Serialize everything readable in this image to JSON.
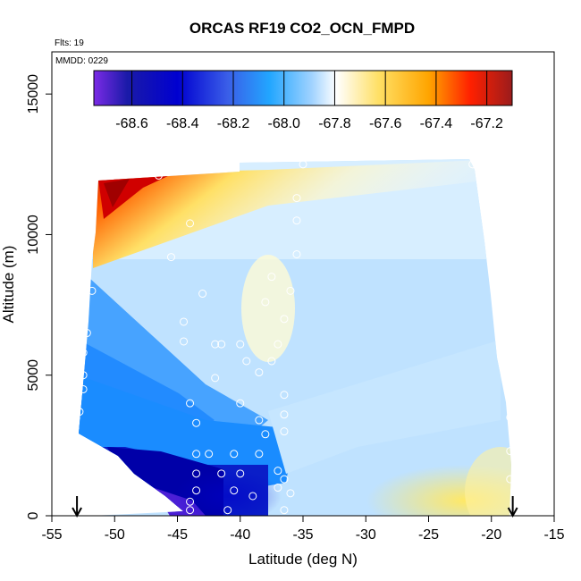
{
  "chart_data": {
    "type": "heatmap",
    "title": "ORCAS RF19 CO2_OCN_FMPD",
    "annotations": {
      "flights": "Flts: 19",
      "date": "MMDD: 0229"
    },
    "xlabel": "Latitude (deg N)",
    "ylabel": "Altitude (m)",
    "xlim": [
      -55,
      -15
    ],
    "ylim": [
      0,
      16500
    ],
    "x_ticks": [
      -55,
      -50,
      -45,
      -40,
      -35,
      -30,
      -25,
      -20,
      -15
    ],
    "y_ticks": [
      0,
      5000,
      10000,
      15000
    ],
    "colorbar": {
      "range": [
        -68.75,
        -67.1
      ],
      "ticks": [
        -68.6,
        -68.4,
        -68.2,
        -68.0,
        -67.8,
        -67.6,
        -67.4,
        -67.2
      ],
      "stops": [
        "#7b2be6",
        "#1a1aa8",
        "#0000d0",
        "#3a5ee8",
        "#22a6ff",
        "#9fd2ff",
        "#ffffff",
        "#ffe066",
        "#ffa500",
        "#ff2000",
        "#9b1c1c"
      ]
    },
    "arrow_markers_lat": [
      -53,
      -18.3
    ],
    "samples": [
      {
        "x": -48.5,
        "y": 12400
      },
      {
        "x": -47.8,
        "y": 12400
      },
      {
        "x": -47.0,
        "y": 12400
      },
      {
        "x": -46.5,
        "y": 12100
      },
      {
        "x": -44.0,
        "y": 10400
      },
      {
        "x": -46.2,
        "y": 12400
      },
      {
        "x": -45.5,
        "y": 9200
      },
      {
        "x": -43.0,
        "y": 7900
      },
      {
        "x": -44.5,
        "y": 6900
      },
      {
        "x": -44.5,
        "y": 6200
      },
      {
        "x": -42.0,
        "y": 6100
      },
      {
        "x": -41.5,
        "y": 6100
      },
      {
        "x": -40.0,
        "y": 6100
      },
      {
        "x": -39.5,
        "y": 5500
      },
      {
        "x": -38.5,
        "y": 5100
      },
      {
        "x": -37.5,
        "y": 5500
      },
      {
        "x": -37.5,
        "y": 8500
      },
      {
        "x": -38.0,
        "y": 7600
      },
      {
        "x": -36.5,
        "y": 7000
      },
      {
        "x": -36.0,
        "y": 8000
      },
      {
        "x": -37.0,
        "y": 6100
      },
      {
        "x": -35.5,
        "y": 9300
      },
      {
        "x": -35.5,
        "y": 10500
      },
      {
        "x": -35.5,
        "y": 11300
      },
      {
        "x": -35.0,
        "y": 12500
      },
      {
        "x": -34.0,
        "y": 12900
      },
      {
        "x": -32.0,
        "y": 12950
      },
      {
        "x": -30.0,
        "y": 12950
      },
      {
        "x": -28.0,
        "y": 12950
      },
      {
        "x": -26.0,
        "y": 12950
      },
      {
        "x": -24.0,
        "y": 12950
      },
      {
        "x": -22.5,
        "y": 12950
      },
      {
        "x": -21.5,
        "y": 12950
      },
      {
        "x": -21.5,
        "y": 12500
      },
      {
        "x": -44.0,
        "y": 4000
      },
      {
        "x": -43.5,
        "y": 3300
      },
      {
        "x": -42.0,
        "y": 4900
      },
      {
        "x": -40.0,
        "y": 4000
      },
      {
        "x": -38.5,
        "y": 3400
      },
      {
        "x": -38.0,
        "y": 2900
      },
      {
        "x": -36.5,
        "y": 3600
      },
      {
        "x": -36.5,
        "y": 3000
      },
      {
        "x": -36.5,
        "y": 4300
      },
      {
        "x": -43.5,
        "y": 2200
      },
      {
        "x": -42.5,
        "y": 2200
      },
      {
        "x": -40.5,
        "y": 2200
      },
      {
        "x": -38.5,
        "y": 2200
      },
      {
        "x": -37.0,
        "y": 1600
      },
      {
        "x": -36.5,
        "y": 1300
      },
      {
        "x": -37.0,
        "y": 1000
      },
      {
        "x": -43.5,
        "y": 1500
      },
      {
        "x": -41.5,
        "y": 1500
      },
      {
        "x": -40.0,
        "y": 1500
      },
      {
        "x": -40.5,
        "y": 900
      },
      {
        "x": -39.0,
        "y": 700
      },
      {
        "x": -43.5,
        "y": 900
      },
      {
        "x": -44.0,
        "y": 500
      },
      {
        "x": -44.0,
        "y": 200
      },
      {
        "x": -41.0,
        "y": 200
      },
      {
        "x": -36.5,
        "y": 200
      },
      {
        "x": -36.0,
        "y": 800
      },
      {
        "x": -51.8,
        "y": 8000
      },
      {
        "x": -52.2,
        "y": 6500
      },
      {
        "x": -52.5,
        "y": 5800
      },
      {
        "x": -52.5,
        "y": 5000
      },
      {
        "x": -52.8,
        "y": 3700
      },
      {
        "x": -52.5,
        "y": 4500
      },
      {
        "x": -19.5,
        "y": 11500
      },
      {
        "x": -19.0,
        "y": 9500
      },
      {
        "x": -19.0,
        "y": 7500
      },
      {
        "x": -18.8,
        "y": 6300
      },
      {
        "x": -18.5,
        "y": 5200
      },
      {
        "x": -18.5,
        "y": 3500
      },
      {
        "x": -18.5,
        "y": 2300
      },
      {
        "x": -18.5,
        "y": 1300
      }
    ]
  }
}
